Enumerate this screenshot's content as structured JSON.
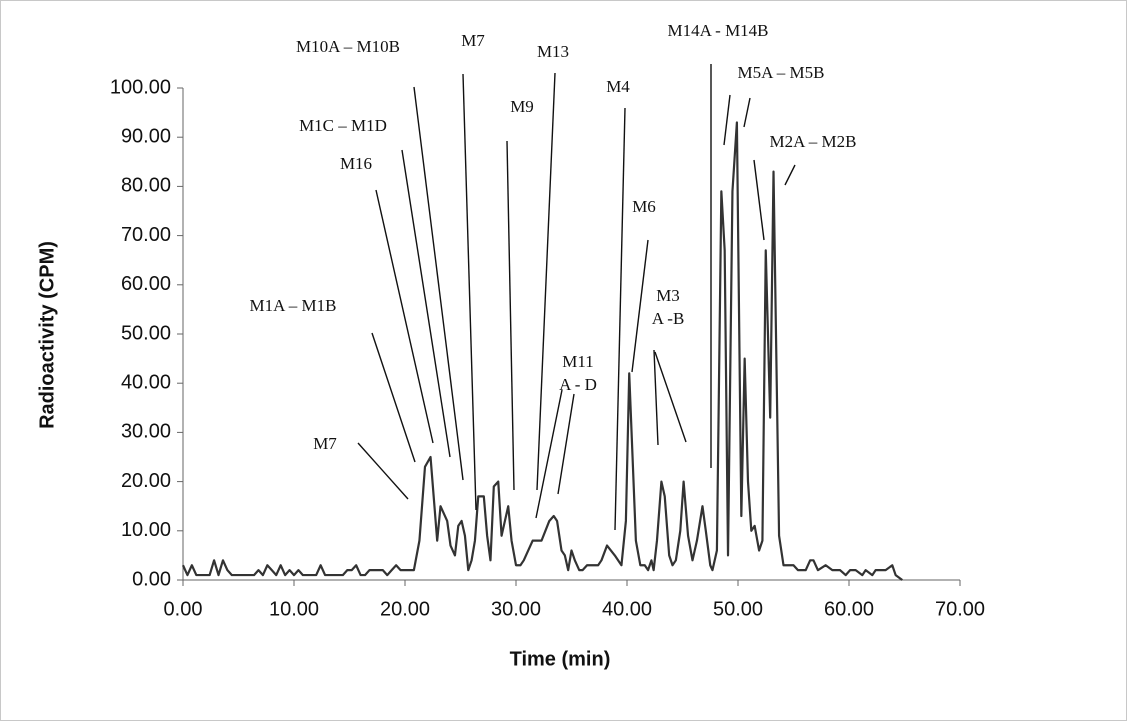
{
  "chart_data": {
    "type": "line",
    "xlabel": "Time (min)",
    "ylabel": "Radioactivity (CPM)",
    "color": "#333333",
    "xlim": [
      0,
      70
    ],
    "ylim": [
      0,
      100
    ],
    "xticks": [
      {
        "value": 0,
        "label": "0.00"
      },
      {
        "value": 10,
        "label": "10.00"
      },
      {
        "value": 20,
        "label": "20.00"
      },
      {
        "value": 30,
        "label": "30.00"
      },
      {
        "value": 40,
        "label": "40.00"
      },
      {
        "value": 50,
        "label": "50.00"
      },
      {
        "value": 60,
        "label": "60.00"
      },
      {
        "value": 70,
        "label": "70.00"
      }
    ],
    "yticks": [
      {
        "value": 0,
        "label": "0.00"
      },
      {
        "value": 10,
        "label": "10.00"
      },
      {
        "value": 20,
        "label": "20.00"
      },
      {
        "value": 30,
        "label": "30.00"
      },
      {
        "value": 40,
        "label": "40.00"
      },
      {
        "value": 50,
        "label": "50.00"
      },
      {
        "value": 60,
        "label": "60.00"
      },
      {
        "value": 70,
        "label": "70.00"
      },
      {
        "value": 80,
        "label": "80.00"
      },
      {
        "value": 90,
        "label": "90.00"
      },
      {
        "value": 100,
        "label": "100.00"
      }
    ],
    "x": [
      0,
      0.4,
      0.8,
      1.2,
      2.4,
      2.8,
      3.2,
      3.6,
      4.0,
      4.4,
      6.4,
      6.8,
      7.2,
      7.6,
      8.0,
      8.4,
      8.8,
      9.2,
      9.6,
      10.0,
      10.4,
      10.8,
      12.0,
      12.4,
      12.8,
      14.4,
      14.8,
      15.2,
      15.6,
      16.0,
      16.4,
      16.8,
      18.0,
      18.4,
      18.8,
      19.2,
      19.6,
      20.8,
      21.3,
      21.8,
      22.3,
      22.9,
      23.2,
      23.8,
      24.1,
      24.5,
      24.8,
      25.1,
      25.4,
      25.7,
      26.0,
      26.3,
      26.6,
      27.1,
      27.4,
      27.7,
      28.0,
      28.4,
      28.7,
      29.3,
      29.6,
      30.0,
      30.4,
      30.7,
      31.5,
      32.3,
      33.0,
      33.4,
      33.7,
      34.1,
      34.4,
      34.7,
      35.0,
      35.3,
      35.7,
      36.0,
      36.4,
      37.4,
      37.7,
      38.2,
      38.9,
      39.5,
      39.9,
      40.2,
      40.5,
      40.8,
      41.2,
      41.6,
      41.9,
      42.2,
      42.4,
      42.7,
      43.1,
      43.4,
      43.8,
      44.1,
      44.4,
      44.8,
      45.1,
      45.5,
      45.9,
      46.3,
      46.8,
      47.1,
      47.5,
      47.7,
      48.1,
      48.5,
      48.8,
      49.1,
      49.5,
      49.9,
      50.3,
      50.6,
      50.9,
      51.2,
      51.5,
      51.9,
      52.2,
      52.5,
      52.9,
      53.2,
      53.7,
      54.1,
      55.0,
      55.4,
      56.1,
      56.5,
      56.8,
      57.2,
      57.9,
      58.5,
      59.2,
      59.7,
      60.1,
      60.6,
      61.2,
      61.5,
      62.1,
      62.4,
      63.0,
      63.3,
      63.9,
      64.2,
      64.8
    ],
    "values": [
      3,
      1,
      3,
      1,
      1,
      4,
      1,
      4,
      2,
      1,
      1,
      2,
      1,
      3,
      2,
      1,
      3,
      1,
      2,
      1,
      2,
      1,
      1,
      3,
      1,
      1,
      2,
      2,
      3,
      1,
      1,
      2,
      2,
      1,
      2,
      3,
      2,
      2,
      8,
      23,
      25,
      8,
      15,
      12,
      7,
      5,
      11,
      12,
      9,
      2,
      4,
      8,
      17,
      17,
      9,
      4,
      19,
      20,
      9,
      15,
      8,
      3,
      3,
      4,
      8,
      8,
      12,
      13,
      12,
      6,
      5,
      2,
      6,
      4,
      2,
      2,
      3,
      3,
      4,
      7,
      5,
      3,
      12,
      42,
      25,
      8,
      3,
      3,
      2,
      4,
      2,
      8,
      20,
      17,
      5,
      3,
      4,
      10,
      20,
      9,
      4,
      8,
      15,
      10,
      3,
      2,
      6,
      79,
      67,
      5,
      79,
      93,
      13,
      45,
      20,
      10,
      11,
      6,
      8,
      67,
      33,
      83,
      9,
      3,
      3,
      2,
      2,
      4,
      4,
      2,
      3,
      2,
      2,
      1,
      2,
      2,
      1,
      2,
      1,
      2,
      2,
      2,
      3,
      1,
      0
    ],
    "annotations": [
      {
        "text": [
          "M7"
        ]
      },
      {
        "text": [
          "M1A – M1B"
        ]
      },
      {
        "text": [
          "M16"
        ]
      },
      {
        "text": [
          "M1C – M1D"
        ]
      },
      {
        "text": [
          "M10A – M10B"
        ]
      },
      {
        "text": [
          "M7"
        ]
      },
      {
        "text": [
          "M9"
        ]
      },
      {
        "text": [
          "M13"
        ]
      },
      {
        "text": [
          "M11",
          "A - D"
        ]
      },
      {
        "text": [
          "M4"
        ]
      },
      {
        "text": [
          "M6"
        ]
      },
      {
        "text": [
          "M3",
          "A -B"
        ]
      },
      {
        "text": [
          "M14A - M14B"
        ]
      },
      {
        "text": [
          "M5A – M5B"
        ]
      },
      {
        "text": [
          "M2A – M2B"
        ]
      }
    ]
  }
}
